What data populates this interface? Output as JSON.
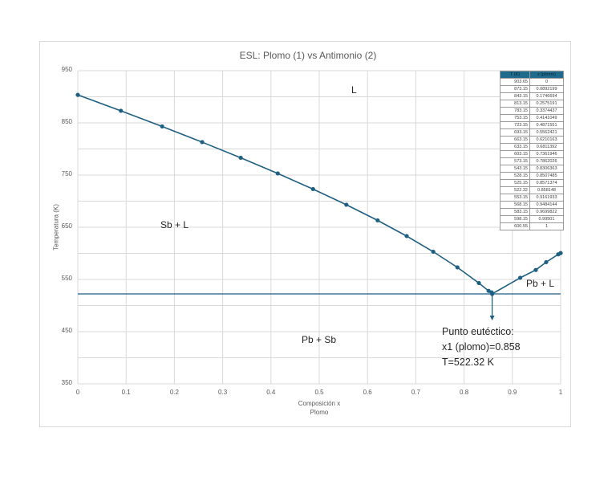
{
  "chart_data": {
    "type": "line",
    "title": "ESL: Plomo (1) vs Antimonio (2)",
    "xlabel": "Composición x\nPlomo",
    "xlabel_lines": [
      "Composición x",
      "Plomo"
    ],
    "ylabel": "Temperatura (K)",
    "xlim": [
      0,
      1
    ],
    "ylim": [
      350,
      950
    ],
    "x_ticks": [
      "0",
      "0.1",
      "0.2",
      "0.3",
      "0.4",
      "0.5",
      "0.6",
      "0.7",
      "0.8",
      "0.9",
      "1"
    ],
    "y_ticks": [
      "950",
      "850",
      "750",
      "650",
      "550",
      "450",
      "350"
    ],
    "grid": true,
    "legend": "none",
    "series": [
      {
        "name": "Liquidus",
        "color": "#1f5f82",
        "x": [
          0,
          0.0892199,
          0.1746694,
          0.2575191,
          0.3374437,
          0.4141049,
          0.4871551,
          0.5562421,
          0.6210163,
          0.6811392,
          0.7361946,
          0.7862026,
          0.8306363,
          0.8507485,
          0.8571374,
          0.858148,
          0.9161933,
          0.9484144,
          0.9699822,
          0.99501,
          1
        ],
        "y": [
          903.65,
          873.15,
          843.15,
          813.15,
          783.15,
          753.15,
          723.15,
          693.15,
          663.15,
          633.15,
          603.15,
          573.15,
          543.15,
          528.15,
          525.15,
          522.32,
          553.15,
          568.15,
          583.15,
          598.15,
          600.55
        ]
      },
      {
        "name": "Eutectic line",
        "color": "#1f5f82",
        "y_const": 522.32
      }
    ],
    "annotations": [
      {
        "text": "L",
        "x": 0.57,
        "y": 905
      },
      {
        "text": "Sb + L",
        "x": 0.2,
        "y": 655
      },
      {
        "text": "Pb + L",
        "x": 0.96,
        "y": 540
      },
      {
        "text": "Pb + Sb",
        "x": 0.5,
        "y": 475
      },
      {
        "text": "Punto eutéctico:\nx1 (plomo)=0.858\nT=522.32 K",
        "x": 0.858,
        "y": 522.32,
        "arrow": "down"
      }
    ],
    "table": {
      "headers": [
        "T (K)",
        "z (plomo)"
      ],
      "rows": [
        [
          "903.65",
          "0"
        ],
        [
          "873.15",
          "0.0892199"
        ],
        [
          "843.15",
          "0.1746694"
        ],
        [
          "813.15",
          "0.2575191"
        ],
        [
          "783.15",
          "0.3374437"
        ],
        [
          "753.15",
          "0.4141049"
        ],
        [
          "723.15",
          "0.4871551"
        ],
        [
          "693.15",
          "0.5562421"
        ],
        [
          "663.15",
          "0.6210163"
        ],
        [
          "633.15",
          "0.6811392"
        ],
        [
          "603.15",
          "0.7361946"
        ],
        [
          "573.15",
          "0.7862026"
        ],
        [
          "543.15",
          "0.8306363"
        ],
        [
          "528.15",
          "0.8507485"
        ],
        [
          "525.15",
          "0.8571374"
        ],
        [
          "522.32",
          "0.858148"
        ],
        [
          "553.15",
          "0.9161933"
        ],
        [
          "568.15",
          "0.9484144"
        ],
        [
          "583.15",
          "0.9699822"
        ],
        [
          "598.15",
          "0.99501"
        ],
        [
          "600.55",
          "1"
        ]
      ]
    }
  },
  "labels": {
    "title": "ESL: Plomo (1) vs Antimonio (2)",
    "xlabel_1": "Composición x",
    "xlabel_2": "Plomo",
    "ylabel": "Temperatura (K)",
    "region_L": "L",
    "region_SbL": "Sb + L",
    "region_PbL": "Pb + L",
    "region_PbSb": "Pb + Sb",
    "annot_1": "Punto eutéctico:",
    "annot_2": "x1 (plomo)=0.858",
    "annot_3": "T=522.32 K"
  },
  "colors": {
    "series": "#1f5f82",
    "grid": "#d9d9d9",
    "table_header": "#1f6b8e"
  }
}
